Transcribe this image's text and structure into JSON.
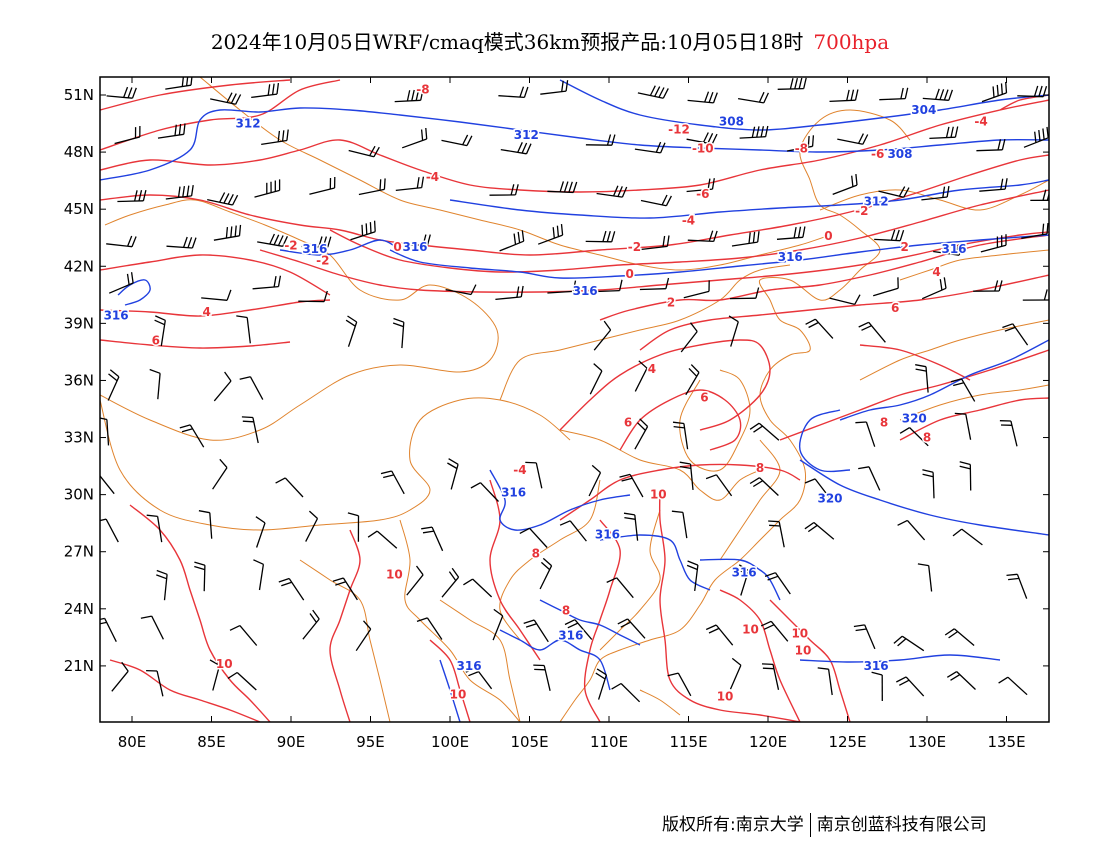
{
  "title": {
    "main": "2024年10月05日WRF/cmaq模式36km预报产品:10月05日18时",
    "level": "700hpa"
  },
  "axes": {
    "lat_labels": [
      "51N",
      "48N",
      "45N",
      "42N",
      "39N",
      "36N",
      "33N",
      "30N",
      "27N",
      "24N",
      "21N"
    ],
    "lat_values": [
      51,
      48,
      45,
      42,
      39,
      36,
      33,
      30,
      27,
      24,
      21
    ],
    "lon_labels": [
      "80E",
      "85E",
      "90E",
      "95E",
      "100E",
      "105E",
      "110E",
      "115E",
      "120E",
      "125E",
      "130E",
      "135E"
    ],
    "lon_values": [
      80,
      85,
      90,
      95,
      100,
      105,
      110,
      115,
      120,
      125,
      130,
      135
    ],
    "lon_range": [
      78,
      138
    ],
    "lat_range": [
      18,
      52
    ]
  },
  "colors": {
    "geopotential": "#2141e0",
    "temperature": "#e8353a",
    "border": "#e0842e",
    "wind": "#000000",
    "level": "#e8212b"
  },
  "geopotential_labels": [
    {
      "text": "312",
      "lon": 87.3,
      "lat": 49.5
    },
    {
      "text": "312",
      "lon": 104.8,
      "lat": 48.9
    },
    {
      "text": "308",
      "lon": 117.7,
      "lat": 49.6
    },
    {
      "text": "304",
      "lon": 129.8,
      "lat": 50.2
    },
    {
      "text": "308",
      "lon": 128.3,
      "lat": 47.9
    },
    {
      "text": "312",
      "lon": 126.8,
      "lat": 45.4
    },
    {
      "text": "316",
      "lon": 91.5,
      "lat": 42.9
    },
    {
      "text": "316",
      "lon": 97.8,
      "lat": 43.0
    },
    {
      "text": "316",
      "lon": 121.4,
      "lat": 42.5
    },
    {
      "text": "316",
      "lon": 131.7,
      "lat": 42.9
    },
    {
      "text": "316",
      "lon": 108.5,
      "lat": 40.7
    },
    {
      "text": "316",
      "lon": 79.0,
      "lat": 39.4
    },
    {
      "text": "320",
      "lon": 129.2,
      "lat": 34.0
    },
    {
      "text": "320",
      "lon": 123.9,
      "lat": 29.8
    },
    {
      "text": "316",
      "lon": 104.0,
      "lat": 30.1
    },
    {
      "text": "316",
      "lon": 109.9,
      "lat": 27.9
    },
    {
      "text": "316",
      "lon": 118.5,
      "lat": 25.9
    },
    {
      "text": "316",
      "lon": 107.6,
      "lat": 22.6
    },
    {
      "text": "316",
      "lon": 101.2,
      "lat": 21.0
    },
    {
      "text": "316",
      "lon": 126.8,
      "lat": 21.0
    }
  ],
  "temperature_labels": [
    {
      "text": "-8",
      "lon": 98.3,
      "lat": 51.3
    },
    {
      "text": "-12",
      "lon": 114.4,
      "lat": 49.2
    },
    {
      "text": "-4",
      "lon": 133.4,
      "lat": 49.6
    },
    {
      "text": "-10",
      "lon": 115.9,
      "lat": 48.2
    },
    {
      "text": "-8",
      "lon": 122.1,
      "lat": 48.2
    },
    {
      "text": "-6",
      "lon": 126.9,
      "lat": 47.9
    },
    {
      "text": "-4",
      "lon": 98.9,
      "lat": 46.7
    },
    {
      "text": "-6",
      "lon": 115.9,
      "lat": 45.8
    },
    {
      "text": "-2",
      "lon": 125.9,
      "lat": 44.9
    },
    {
      "text": "-4",
      "lon": 115.0,
      "lat": 44.4
    },
    {
      "text": "-2",
      "lon": 90.0,
      "lat": 43.1
    },
    {
      "text": "-2",
      "lon": 92.0,
      "lat": 42.3
    },
    {
      "text": "0",
      "lon": 96.7,
      "lat": 43.0
    },
    {
      "text": "-2",
      "lon": 111.6,
      "lat": 43.0
    },
    {
      "text": "0",
      "lon": 123.8,
      "lat": 43.6
    },
    {
      "text": "2",
      "lon": 128.6,
      "lat": 43.0
    },
    {
      "text": "0",
      "lon": 111.3,
      "lat": 41.6
    },
    {
      "text": "4",
      "lon": 130.6,
      "lat": 41.7
    },
    {
      "text": "2",
      "lon": 113.9,
      "lat": 40.1
    },
    {
      "text": "4",
      "lon": 84.7,
      "lat": 39.6
    },
    {
      "text": "6",
      "lon": 128.0,
      "lat": 39.8
    },
    {
      "text": "6",
      "lon": 81.5,
      "lat": 38.1
    },
    {
      "text": "4",
      "lon": 112.7,
      "lat": 36.6
    },
    {
      "text": "6",
      "lon": 116.0,
      "lat": 35.1
    },
    {
      "text": "6",
      "lon": 111.2,
      "lat": 33.8
    },
    {
      "text": "8",
      "lon": 127.3,
      "lat": 33.8
    },
    {
      "text": "8",
      "lon": 130.0,
      "lat": 33.0
    },
    {
      "text": "-4",
      "lon": 104.4,
      "lat": 31.3
    },
    {
      "text": "8",
      "lon": 119.5,
      "lat": 31.4
    },
    {
      "text": "10",
      "lon": 113.1,
      "lat": 30.0
    },
    {
      "text": "8",
      "lon": 105.4,
      "lat": 26.9
    },
    {
      "text": "10",
      "lon": 96.5,
      "lat": 25.8
    },
    {
      "text": "8",
      "lon": 107.3,
      "lat": 23.9
    },
    {
      "text": "10",
      "lon": 118.9,
      "lat": 22.9
    },
    {
      "text": "10",
      "lon": 122.0,
      "lat": 22.7
    },
    {
      "text": "10",
      "lon": 122.2,
      "lat": 21.8
    },
    {
      "text": "10",
      "lon": 85.8,
      "lat": 21.1
    },
    {
      "text": "10",
      "lon": 100.5,
      "lat": 19.5
    },
    {
      "text": "10",
      "lon": 117.3,
      "lat": 19.4
    }
  ],
  "footer": {
    "left": "版权所有:南京大学",
    "right": "南京创蓝科技有限公司"
  }
}
